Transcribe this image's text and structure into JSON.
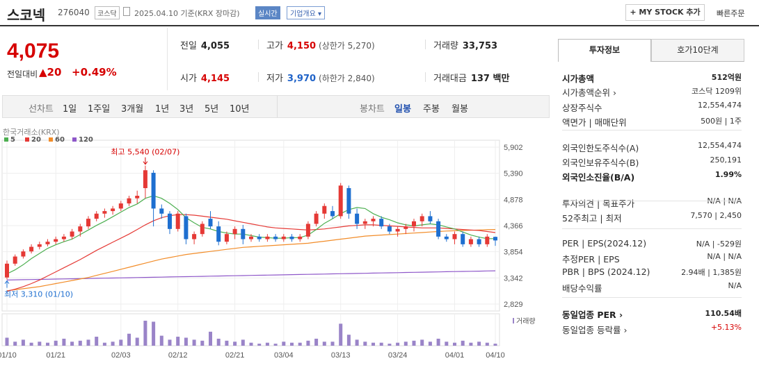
{
  "header": {
    "name": "스코넥",
    "code": "276040",
    "market": "코스닥",
    "date": "2025.04.10 기준(KRX 장마감)",
    "realtime": "실시간",
    "overview": "기업개요 ▾",
    "mystock": "+ MY STOCK 추가",
    "quick_order": "빠른주문"
  },
  "price": {
    "current": "4,075",
    "prev_label": "전일대비",
    "change": "▲20",
    "rate": "+0.49%"
  },
  "info": {
    "prev": {
      "label": "전일",
      "value": "4,055"
    },
    "high": {
      "label": "고가",
      "value": "4,150",
      "sub": "(상한가 5,270)"
    },
    "volume": {
      "label": "거래량",
      "value": "33,753"
    },
    "open": {
      "label": "시가",
      "value": "4,145"
    },
    "low": {
      "label": "저가",
      "value": "3,970",
      "sub": "(하한가 2,840)"
    },
    "amount": {
      "label": "거래대금",
      "value": "137 백만"
    }
  },
  "periods": {
    "line_label": "선차트",
    "line_items": [
      "1일",
      "1주일",
      "3개월",
      "1년",
      "3년",
      "5년",
      "10년"
    ],
    "candle_label": "봉차트",
    "candle_items": [
      "일봉",
      "주봉",
      "월봉"
    ],
    "selected": "일봉"
  },
  "chart": {
    "source": "한국거래소(KRX)",
    "ma_legend": [
      {
        "label": "5",
        "color": "#4caf50"
      },
      {
        "label": "20",
        "color": "#e53935"
      },
      {
        "label": "60",
        "color": "#f28c28"
      },
      {
        "label": "120",
        "color": "#8e57c9"
      }
    ],
    "y_ticks": [
      "5,902",
      "5,390",
      "4,878",
      "4,366",
      "3,854",
      "3,342",
      "2,829"
    ],
    "x_ticks": [
      "01/10",
      "01/21",
      "02/03",
      "02/12",
      "02/21",
      "03/04",
      "03/13",
      "03/24",
      "04/01",
      "04/10"
    ],
    "high_note": "최고 5,540 (02/07)",
    "low_note": "최저 3,310 (01/10)",
    "volume_label": "거래량",
    "colors": {
      "up": "#e53935",
      "down": "#1e6fd0",
      "volume": "#9a84c8"
    }
  },
  "chart_data": {
    "type": "candlestick",
    "y_range": [
      2829,
      5902
    ],
    "ohlc": [
      [
        3350,
        3680,
        3310,
        3620
      ],
      [
        3620,
        3800,
        3580,
        3760
      ],
      [
        3760,
        3900,
        3720,
        3860
      ],
      [
        3860,
        4000,
        3820,
        3950
      ],
      [
        3950,
        4050,
        3900,
        4000
      ],
      [
        4000,
        4100,
        3960,
        4050
      ],
      [
        4050,
        4150,
        4000,
        4100
      ],
      [
        4100,
        4200,
        4050,
        4150
      ],
      [
        4150,
        4300,
        4100,
        4250
      ],
      [
        4250,
        4400,
        4150,
        4350
      ],
      [
        4350,
        4550,
        4300,
        4500
      ],
      [
        4500,
        4650,
        4450,
        4600
      ],
      [
        4600,
        4700,
        4520,
        4650
      ],
      [
        4650,
        4750,
        4580,
        4700
      ],
      [
        4700,
        4850,
        4650,
        4800
      ],
      [
        4800,
        4950,
        4750,
        4900
      ],
      [
        4900,
        5050,
        4800,
        4950
      ],
      [
        5100,
        5540,
        4900,
        5450
      ],
      [
        5400,
        5450,
        4350,
        4700
      ],
      [
        4700,
        4780,
        4500,
        4600
      ],
      [
        4600,
        4650,
        4200,
        4300
      ],
      [
        4300,
        4650,
        4250,
        4600
      ],
      [
        4550,
        4600,
        4000,
        4100
      ],
      [
        4100,
        4250,
        4000,
        4200
      ],
      [
        4200,
        4450,
        4150,
        4400
      ],
      [
        4500,
        4650,
        4300,
        4350
      ],
      [
        4350,
        4450,
        3980,
        4050
      ],
      [
        4050,
        4250,
        4000,
        4200
      ],
      [
        4200,
        4350,
        4100,
        4300
      ],
      [
        4300,
        4380,
        4000,
        4100
      ],
      [
        4100,
        4200,
        4050,
        4150
      ],
      [
        4150,
        4200,
        4050,
        4100
      ],
      [
        4100,
        4200,
        4050,
        4150
      ],
      [
        4150,
        4200,
        4050,
        4100
      ],
      [
        4100,
        4200,
        4050,
        4150
      ],
      [
        4150,
        4200,
        4050,
        4100
      ],
      [
        4100,
        4200,
        4050,
        4150
      ],
      [
        4150,
        4450,
        4100,
        4400
      ],
      [
        4400,
        4650,
        4350,
        4600
      ],
      [
        4600,
        4800,
        4500,
        4750
      ],
      [
        4650,
        4750,
        4500,
        4550
      ],
      [
        4550,
        5200,
        4500,
        5150
      ],
      [
        5100,
        5150,
        4500,
        4600
      ],
      [
        4600,
        4700,
        4300,
        4400
      ],
      [
        4400,
        4500,
        4300,
        4450
      ],
      [
        4450,
        4550,
        4350,
        4500
      ],
      [
        4500,
        4550,
        4300,
        4350
      ],
      [
        4350,
        4400,
        4200,
        4250
      ],
      [
        4250,
        4350,
        4150,
        4300
      ],
      [
        4300,
        4400,
        4200,
        4350
      ],
      [
        4350,
        4500,
        4250,
        4450
      ],
      [
        4450,
        4600,
        4350,
        4550
      ],
      [
        4550,
        4650,
        4400,
        4450
      ],
      [
        4450,
        4500,
        4100,
        4150
      ],
      [
        4150,
        4200,
        4050,
        4100
      ],
      [
        4100,
        4250,
        4000,
        4200
      ],
      [
        4200,
        4250,
        3950,
        4000
      ],
      [
        4000,
        4150,
        3950,
        4100
      ],
      [
        4100,
        4150,
        3950,
        4000
      ],
      [
        4000,
        4200,
        3950,
        4150
      ],
      [
        4145,
        4150,
        3970,
        4075
      ]
    ],
    "volume": [
      8,
      4,
      6,
      3,
      4,
      3,
      5,
      7,
      4,
      5,
      6,
      9,
      3,
      4,
      6,
      12,
      8,
      25,
      24,
      10,
      6,
      9,
      8,
      6,
      5,
      14,
      7,
      5,
      4,
      6,
      3,
      2,
      3,
      2,
      4,
      3,
      3,
      5,
      7,
      4,
      4,
      22,
      11,
      6,
      4,
      3,
      3,
      2,
      3,
      4,
      5,
      6,
      4,
      7,
      4,
      3,
      5,
      3,
      4,
      3,
      2
    ],
    "ma5": [
      3420,
      3500,
      3600,
      3720,
      3820,
      3920,
      3990,
      4050,
      4100,
      4190,
      4280,
      4370,
      4450,
      4540,
      4630,
      4720,
      4790,
      4900,
      4950,
      4900,
      4800,
      4680,
      4520,
      4420,
      4330,
      4300,
      4250,
      4220,
      4200,
      4200,
      4170,
      4140,
      4130,
      4120,
      4120,
      4130,
      4130,
      4180,
      4290,
      4410,
      4500,
      4600,
      4680,
      4720,
      4700,
      4600,
      4530,
      4480,
      4420,
      4380,
      4360,
      4380,
      4400,
      4380,
      4340,
      4300,
      4240,
      4180,
      4140,
      4110,
      4110
    ],
    "ma20": [
      3080,
      3120,
      3170,
      3230,
      3300,
      3380,
      3460,
      3540,
      3620,
      3700,
      3790,
      3880,
      3960,
      4040,
      4120,
      4200,
      4290,
      4380,
      4460,
      4520,
      4560,
      4580,
      4580,
      4570,
      4550,
      4530,
      4510,
      4490,
      4460,
      4430,
      4400,
      4370,
      4340,
      4320,
      4310,
      4300,
      4290,
      4280,
      4290,
      4300,
      4320,
      4340,
      4360,
      4370,
      4380,
      4380,
      4370,
      4360,
      4350,
      4340,
      4330,
      4320,
      4320,
      4320,
      4310,
      4300,
      4290,
      4280,
      4270,
      4250,
      4230
    ],
    "ma60": [
      3090,
      3110,
      3130,
      3150,
      3170,
      3200,
      3230,
      3260,
      3290,
      3320,
      3350,
      3390,
      3430,
      3470,
      3510,
      3550,
      3590,
      3630,
      3670,
      3710,
      3740,
      3770,
      3800,
      3820,
      3840,
      3860,
      3880,
      3900,
      3920,
      3940,
      3950,
      3960,
      3970,
      3980,
      3990,
      4000,
      4010,
      4020,
      4040,
      4060,
      4080,
      4100,
      4120,
      4140,
      4160,
      4170,
      4180,
      4190,
      4200,
      4210,
      4220,
      4230,
      4240,
      4250,
      4260,
      4265,
      4270,
      4275,
      4280,
      4285,
      4290
    ],
    "ma120": [
      3300,
      3303,
      3306,
      3309,
      3312,
      3315,
      3318,
      3321,
      3324,
      3327,
      3330,
      3333,
      3336,
      3339,
      3342,
      3345,
      3348,
      3351,
      3354,
      3357,
      3360,
      3363,
      3366,
      3369,
      3372,
      3375,
      3378,
      3381,
      3384,
      3387,
      3390,
      3393,
      3396,
      3399,
      3402,
      3405,
      3408,
      3411,
      3414,
      3417,
      3420,
      3423,
      3426,
      3429,
      3432,
      3435,
      3438,
      3441,
      3444,
      3447,
      3450,
      3453,
      3456,
      3459,
      3462,
      3465,
      3468,
      3471,
      3474,
      3477,
      3480
    ]
  },
  "panel": {
    "tab_invest": "투자정보",
    "tab_hoga": "호가10단계",
    "rows": [
      {
        "k": "시가총액",
        "v": "512억원",
        "bold": true
      },
      {
        "k": "시가총액순위 ›",
        "v": "코스닥 1209위"
      },
      {
        "k": "상장주식수",
        "v": "12,554,474"
      },
      {
        "k": "액면가 | 매매단위",
        "v": "500원 | 1주"
      },
      {
        "k": "외국인한도주식수(A)",
        "v": "12,554,474"
      },
      {
        "k": "외국인보유주식수(B)",
        "v": "250,191"
      },
      {
        "k": "외국인소진율(B/A)",
        "v": "1.99%",
        "bold": true
      },
      {
        "k": "투자의견 | 목표주가",
        "v": "N/A | N/A"
      },
      {
        "k": "52주최고 | 최저",
        "v": "7,570 | 2,450"
      },
      {
        "k": "PER | EPS(2024.12)",
        "v": "N/A | -529원"
      },
      {
        "k": "추정PER | EPS",
        "v": "N/A | N/A"
      },
      {
        "k": "PBR | BPS (2024.12)",
        "v": "2.94배 | 1,385원"
      },
      {
        "k": "배당수익률",
        "v": "N/A"
      },
      {
        "k": "동일업종 PER ›",
        "v": "110.54배",
        "bold": true
      },
      {
        "k": "동일업종 등락률 ›",
        "v": "+5.13%"
      }
    ]
  }
}
